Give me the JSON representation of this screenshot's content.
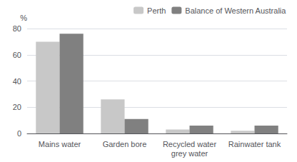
{
  "chart_data": {
    "type": "bar",
    "ylabel": "%",
    "categories": [
      "Mains water",
      "Garden bore",
      "Recycled water\ngrey water",
      "Rainwater tank"
    ],
    "series": [
      {
        "name": "Perth",
        "color": "#c8c8c8",
        "values": [
          70,
          26,
          3,
          2
        ]
      },
      {
        "name": "Balance of Western Australia",
        "color": "#808080",
        "values": [
          76,
          11,
          6,
          6
        ]
      }
    ],
    "ylim": [
      0,
      80
    ],
    "yticks": [
      0,
      20,
      40,
      60,
      80
    ],
    "grid": true,
    "legend": "upper right"
  }
}
